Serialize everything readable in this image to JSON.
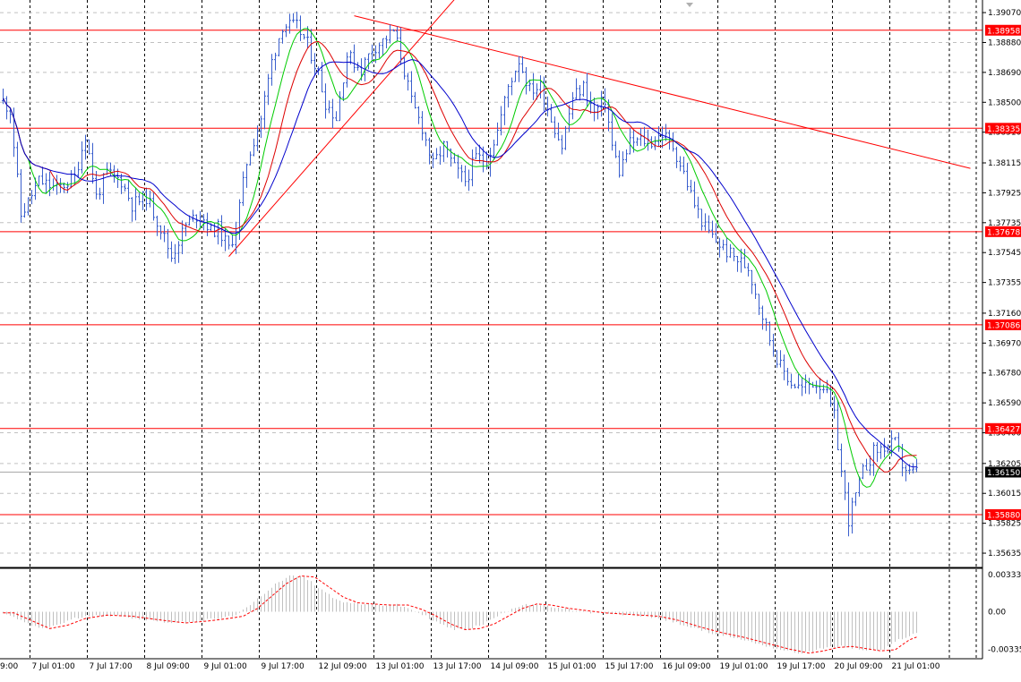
{
  "chart_data": [
    {
      "type": "candlestick",
      "title": "",
      "panel": "main",
      "ylim": [
        1.3555,
        1.3915
      ],
      "grid": true,
      "x_ticks": [
        "9:00",
        "7 Jul 01:00",
        "7 Jul 17:00",
        "8 Jul 09:00",
        "9 Jul 01:00",
        "9 Jul 17:00",
        "12 Jul 09:00",
        "13 Jul 01:00",
        "13 Jul 17:00",
        "14 Jul 09:00",
        "15 Jul 01:00",
        "15 Jul 17:00",
        "16 Jul 09:00",
        "19 Jul 01:00",
        "19 Jul 17:00",
        "20 Jul 09:00",
        "21 Jul 01:00"
      ],
      "y_ticks": [
        "1.39070",
        "1.38880",
        "1.38690",
        "1.38500",
        "1.38310",
        "1.38115",
        "1.37925",
        "1.37735",
        "1.37545",
        "1.37355",
        "1.37160",
        "1.36970",
        "1.36780",
        "1.36590",
        "1.36400",
        "1.36205",
        "1.36015",
        "1.35825",
        "1.35635"
      ],
      "y_tick_values": [
        1.3907,
        1.3888,
        1.3869,
        1.385,
        1.3831,
        1.38115,
        1.37925,
        1.37735,
        1.37545,
        1.37355,
        1.3716,
        1.3697,
        1.3678,
        1.3659,
        1.364,
        1.36205,
        1.36015,
        1.35825,
        1.35635
      ],
      "horizontal_levels": [
        {
          "value": 1.38958,
          "label": "1.38958",
          "color": "#ff0000"
        },
        {
          "value": 1.38335,
          "label": "1.38335",
          "color": "#ff0000"
        },
        {
          "value": 1.37678,
          "label": "1.37678",
          "color": "#ff0000"
        },
        {
          "value": 1.37086,
          "label": "1.37086",
          "color": "#ff0000"
        },
        {
          "value": 1.36427,
          "label": "1.36427",
          "color": "#ff0000"
        },
        {
          "value": 1.3588,
          "label": "1.35880",
          "color": "#ff0000"
        }
      ],
      "current_price": {
        "value": 1.3615,
        "label": "1.36150"
      },
      "trendlines": [
        {
          "from_bar": 98,
          "from_price": 1.3905,
          "to_bar": 270,
          "to_price": 1.3808,
          "color": "#ff0000"
        },
        {
          "from_bar": 63,
          "from_price": 1.3752,
          "to_bar": 127,
          "to_price": 1.3918,
          "color": "#ff0000"
        }
      ],
      "series": [
        {
          "name": "",
          "kind": "ohlc",
          "color": "#3a5fcd"
        },
        {
          "name": "",
          "kind": "ma",
          "color": "#00cc00",
          "period": 8
        },
        {
          "name": "",
          "kind": "ma",
          "color": "#dd0000",
          "period": 14
        },
        {
          "name": "",
          "kind": "ma",
          "color": "#0000cc",
          "period": 21
        }
      ],
      "price_path": [
        [
          0,
          1.3851
        ],
        [
          2,
          1.3845
        ],
        [
          5,
          1.3778
        ],
        [
          10,
          1.38
        ],
        [
          15,
          1.3795
        ],
        [
          20,
          1.3802
        ],
        [
          23,
          1.383
        ],
        [
          26,
          1.379
        ],
        [
          29,
          1.3805
        ],
        [
          33,
          1.38
        ],
        [
          36,
          1.3785
        ],
        [
          40,
          1.379
        ],
        [
          44,
          1.377
        ],
        [
          47,
          1.3752
        ],
        [
          51,
          1.3772
        ],
        [
          55,
          1.378
        ],
        [
          58,
          1.3768
        ],
        [
          60,
          1.377
        ],
        [
          63,
          1.3757
        ],
        [
          65,
          1.377
        ],
        [
          68,
          1.3812
        ],
        [
          72,
          1.384
        ],
        [
          75,
          1.3876
        ],
        [
          78,
          1.3899
        ],
        [
          82,
          1.3898
        ],
        [
          85,
          1.3887
        ],
        [
          88,
          1.3868
        ],
        [
          90,
          1.385
        ],
        [
          93,
          1.384
        ],
        [
          96,
          1.388
        ],
        [
          100,
          1.3871
        ],
        [
          103,
          1.3884
        ],
        [
          106,
          1.3889
        ],
        [
          109,
          1.3895
        ],
        [
          111,
          1.388
        ],
        [
          114,
          1.385
        ],
        [
          117,
          1.3834
        ],
        [
          120,
          1.381
        ],
        [
          123,
          1.3822
        ],
        [
          126,
          1.3808
        ],
        [
          129,
          1.38
        ],
        [
          132,
          1.3815
        ],
        [
          135,
          1.3813
        ],
        [
          138,
          1.3832
        ],
        [
          141,
          1.386
        ],
        [
          144,
          1.3877
        ],
        [
          147,
          1.3858
        ],
        [
          150,
          1.386
        ],
        [
          153,
          1.384
        ],
        [
          156,
          1.3822
        ],
        [
          159,
          1.3853
        ],
        [
          162,
          1.386
        ],
        [
          165,
          1.3843
        ],
        [
          168,
          1.3852
        ],
        [
          170,
          1.3822
        ],
        [
          172,
          1.3806
        ],
        [
          175,
          1.3824
        ],
        [
          178,
          1.3826
        ],
        [
          181,
          1.3825
        ],
        [
          184,
          1.383
        ],
        [
          187,
          1.3822
        ],
        [
          190,
          1.3805
        ],
        [
          193,
          1.3785
        ],
        [
          196,
          1.377
        ],
        [
          199,
          1.3762
        ],
        [
          202,
          1.3755
        ],
        [
          205,
          1.375
        ],
        [
          208,
          1.3745
        ],
        [
          211,
          1.3722
        ],
        [
          214,
          1.37
        ],
        [
          217,
          1.3682
        ],
        [
          220,
          1.3672
        ],
        [
          223,
          1.3668
        ],
        [
          226,
          1.3672
        ],
        [
          229,
          1.367
        ],
        [
          232,
          1.365
        ],
        [
          234,
          1.3615
        ],
        [
          236,
          1.3585
        ],
        [
          238,
          1.36
        ],
        [
          240,
          1.3615
        ],
        [
          243,
          1.3628
        ],
        [
          246,
          1.3631
        ],
        [
          249,
          1.3633
        ],
        [
          251,
          1.362
        ],
        [
          253,
          1.3614
        ],
        [
          255,
          1.3615
        ]
      ]
    },
    {
      "type": "histogram",
      "panel": "oscillator",
      "ylim": [
        -0.0042,
        0.0038
      ],
      "y_ticks": [
        "0.003333",
        "0.00",
        "-0.00335"
      ],
      "y_tick_values": [
        0.003333,
        0.0,
        -0.00335
      ],
      "series": [
        {
          "name": "",
          "kind": "histogram",
          "color": "#c0c0c0"
        },
        {
          "name": "",
          "kind": "signal",
          "color": "#ff0000",
          "style": "dashed"
        }
      ],
      "osc_path": [
        [
          0,
          -0.0001
        ],
        [
          5,
          -0.0008
        ],
        [
          10,
          -0.0015
        ],
        [
          15,
          -0.0012
        ],
        [
          20,
          -0.0006
        ],
        [
          26,
          -0.0003
        ],
        [
          33,
          -0.0004
        ],
        [
          40,
          -0.0007
        ],
        [
          48,
          -0.001
        ],
        [
          55,
          -0.0008
        ],
        [
          60,
          -0.0006
        ],
        [
          64,
          -0.0004
        ],
        [
          68,
          0.0003
        ],
        [
          72,
          0.0014
        ],
        [
          76,
          0.0025
        ],
        [
          80,
          0.0032
        ],
        [
          84,
          0.0031
        ],
        [
          88,
          0.0022
        ],
        [
          92,
          0.0013
        ],
        [
          96,
          0.0008
        ],
        [
          100,
          0.0007
        ],
        [
          105,
          0.0006
        ],
        [
          110,
          0.0006
        ],
        [
          114,
          0.0002
        ],
        [
          118,
          -0.0004
        ],
        [
          122,
          -0.0011
        ],
        [
          126,
          -0.0016
        ],
        [
          130,
          -0.0015
        ],
        [
          134,
          -0.0011
        ],
        [
          138,
          -0.0004
        ],
        [
          142,
          0.0003
        ],
        [
          146,
          0.0007
        ],
        [
          150,
          0.0006
        ],
        [
          155,
          0.0003
        ],
        [
          160,
          0.0001
        ],
        [
          165,
          -0.0001
        ],
        [
          170,
          -0.0002
        ],
        [
          175,
          -0.0003
        ],
        [
          180,
          -0.0004
        ],
        [
          186,
          -0.0008
        ],
        [
          192,
          -0.0014
        ],
        [
          198,
          -0.0019
        ],
        [
          204,
          -0.0023
        ],
        [
          210,
          -0.0028
        ],
        [
          216,
          -0.0033
        ],
        [
          222,
          -0.0037
        ],
        [
          226,
          -0.0035
        ],
        [
          230,
          -0.0032
        ],
        [
          234,
          -0.0031
        ],
        [
          238,
          -0.0033
        ],
        [
          242,
          -0.0035
        ],
        [
          246,
          -0.0034
        ],
        [
          250,
          -0.0025
        ],
        [
          255,
          -0.0019
        ]
      ]
    }
  ]
}
